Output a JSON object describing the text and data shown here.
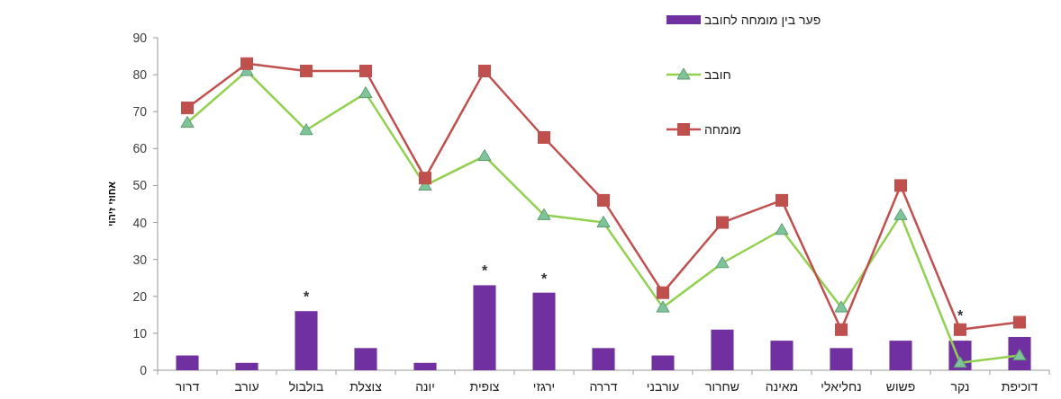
{
  "chart_data": {
    "type": "bar",
    "categories": [
      "דרור",
      "עורב",
      "בולבול",
      "צוצלת",
      "יונה",
      "צופית",
      "ירגזי",
      "דררה",
      "עורבני",
      "שחרור",
      "מאינה",
      "נחליאלי",
      "פשוש",
      "נקר",
      "דוכיפת"
    ],
    "ylabel": "אחוזי זיהוי",
    "series": [
      {
        "name": "פער בין מומחה לחובב",
        "color": "#7030a0",
        "values": [
          4,
          2,
          16,
          6,
          2,
          23,
          21,
          6,
          4,
          11,
          8,
          6,
          8,
          8,
          9
        ]
      },
      {
        "name": "חובב",
        "type": "line",
        "color": "#92d050",
        "marker": "triangle",
        "values": [
          67,
          81,
          65,
          75,
          50,
          58,
          42,
          40,
          17,
          29,
          38,
          17,
          42,
          2,
          4
        ]
      },
      {
        "name": "מומחה",
        "type": "line",
        "color": "#c0504d",
        "marker": "square",
        "values": [
          71,
          83,
          81,
          81,
          52,
          81,
          63,
          46,
          21,
          40,
          46,
          11,
          50,
          11,
          13
        ]
      }
    ],
    "annotations": [
      {
        "text": "*",
        "x": "בולבול",
        "y": 16
      },
      {
        "text": "*",
        "x": "צופית",
        "y": 23
      },
      {
        "text": "*",
        "x": "ירגזי",
        "y": 21
      },
      {
        "text": "*",
        "x": "נקר",
        "y": 11
      }
    ],
    "ylim": [
      0,
      90
    ],
    "yticks": [
      0,
      10,
      20,
      30,
      40,
      50,
      60,
      70,
      80,
      90
    ],
    "legend": "top right"
  }
}
